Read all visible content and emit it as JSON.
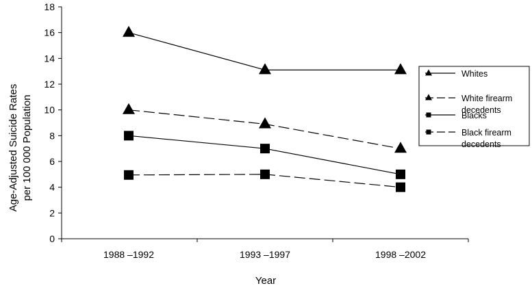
{
  "chart_data": {
    "type": "line",
    "title": "",
    "xlabel": "Year",
    "ylabel_line1": "Age-Adjusted Suicide Rates",
    "ylabel_line2": "per 100 000 Population",
    "categories": [
      "1988 –1992",
      "1993 –1997",
      "1998 –2002"
    ],
    "ylim": [
      0,
      18
    ],
    "yticks": [
      0,
      2,
      4,
      6,
      8,
      10,
      12,
      14,
      16,
      18
    ],
    "grid": false,
    "legend_position": "right",
    "series": [
      {
        "name": "Whites",
        "legend_lines": [
          "Whites"
        ],
        "values": [
          16,
          13.1,
          13.1
        ],
        "marker": "triangle",
        "dash": "solid"
      },
      {
        "name": "White firearm decedents",
        "legend_lines": [
          "White firearm",
          "decedents"
        ],
        "values": [
          10,
          8.9,
          7
        ],
        "marker": "triangle",
        "dash": "dashed"
      },
      {
        "name": "Blacks",
        "legend_lines": [
          "Blacks"
        ],
        "values": [
          8,
          7,
          5
        ],
        "marker": "square",
        "dash": "solid"
      },
      {
        "name": "Black firearm decedents",
        "legend_lines": [
          "Black firearm",
          "decedents"
        ],
        "values": [
          4.95,
          5,
          4
        ],
        "marker": "square",
        "dash": "dashed"
      }
    ]
  }
}
